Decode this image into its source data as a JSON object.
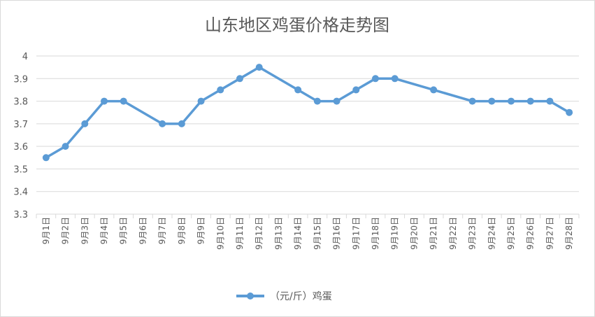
{
  "chart_data": {
    "type": "line",
    "title": "山东地区鸡蛋价格走势图",
    "xlabel": "",
    "ylabel": "",
    "ylim": [
      3.3,
      4
    ],
    "yticks": [
      "3.3",
      "3.4",
      "3.5",
      "3.6",
      "3.7",
      "3.8",
      "3.9",
      "4"
    ],
    "grid": true,
    "legend_position": "bottom",
    "categories": [
      "9月1日",
      "9月2日",
      "9月3日",
      "9月4日",
      "9月5日",
      "9月6日",
      "9月7日",
      "9月8日",
      "9月9日",
      "9月10日",
      "9月11日",
      "9月12日",
      "9月13日",
      "9月14日",
      "9月15日",
      "9月16日",
      "9月17日",
      "9月18日",
      "9月19日",
      "9月20日",
      "9月21日",
      "9月22日",
      "9月23日",
      "9月24日",
      "9月25日",
      "9月26日",
      "9月27日",
      "9月28日"
    ],
    "series": [
      {
        "name": "（元/斤）鸡蛋",
        "color": "#5b9bd5",
        "values": [
          3.55,
          3.6,
          3.7,
          3.8,
          3.8,
          null,
          3.7,
          3.7,
          3.8,
          3.85,
          3.9,
          3.95,
          null,
          3.85,
          3.8,
          3.8,
          3.85,
          3.9,
          3.9,
          null,
          3.85,
          null,
          3.8,
          3.8,
          3.8,
          3.8,
          3.8,
          3.75
        ]
      }
    ]
  }
}
